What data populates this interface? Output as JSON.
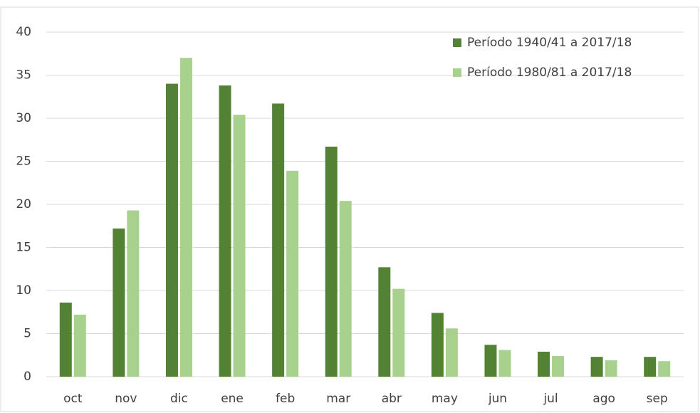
{
  "chart_data": {
    "type": "bar",
    "categories": [
      "oct",
      "nov",
      "dic",
      "ene",
      "feb",
      "mar",
      "abr",
      "may",
      "jun",
      "jul",
      "ago",
      "sep"
    ],
    "series": [
      {
        "name": "Período 1940/41 a 2017/18",
        "color": "#548235",
        "values": [
          8.6,
          17.2,
          34.0,
          33.8,
          31.7,
          26.7,
          12.7,
          7.4,
          3.7,
          2.9,
          2.3,
          2.3
        ]
      },
      {
        "name": "Período 1980/81 a 2017/18",
        "color": "#a9d18e",
        "values": [
          7.2,
          19.3,
          37.0,
          30.4,
          23.9,
          20.4,
          10.2,
          5.6,
          3.1,
          2.4,
          1.9,
          1.8
        ]
      }
    ],
    "ylim": [
      0,
      40
    ],
    "yticks": [
      0,
      5,
      10,
      15,
      20,
      25,
      30,
      35,
      40
    ],
    "grid": true,
    "legend": "top-right"
  }
}
